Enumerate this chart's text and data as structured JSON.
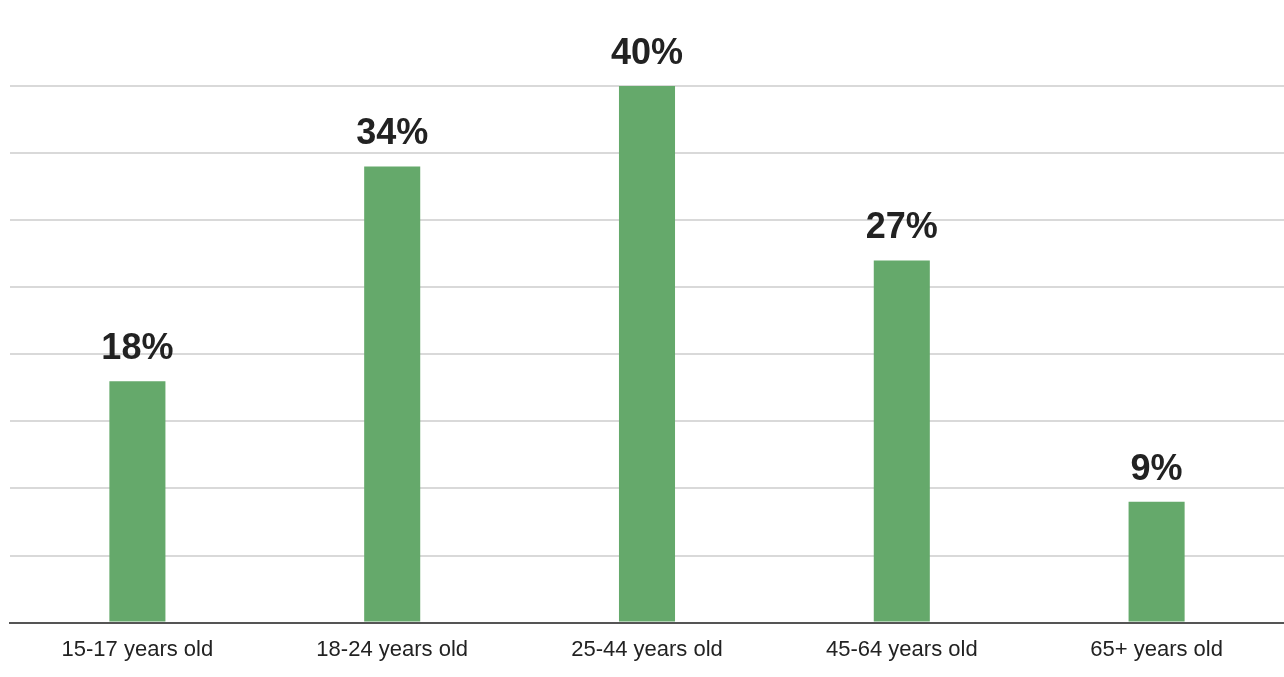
{
  "chart_data": {
    "type": "bar",
    "categories": [
      "15-17 years old",
      "18-24 years old",
      "25-44 years old",
      "45-64 years old",
      "65+ years old"
    ],
    "values": [
      18,
      34,
      40,
      27,
      9
    ],
    "color": "#65a96b",
    "value_labels": [
      "18%",
      "34%",
      "40%",
      "27%",
      "9%"
    ],
    "ylim": [
      0,
      40
    ],
    "yticks": [
      {
        "value": 0,
        "label": null
      },
      {
        "value": 5,
        "label": null
      },
      {
        "value": 10,
        "label": null
      },
      {
        "value": 15,
        "label": null
      },
      {
        "value": 20,
        "label": null
      },
      {
        "value": 25,
        "label": null
      },
      {
        "value": 30,
        "label": null
      },
      {
        "value": 35,
        "label": null
      },
      {
        "value": 40,
        "label": null
      }
    ],
    "grid": "y",
    "tick_labels": "x"
  }
}
